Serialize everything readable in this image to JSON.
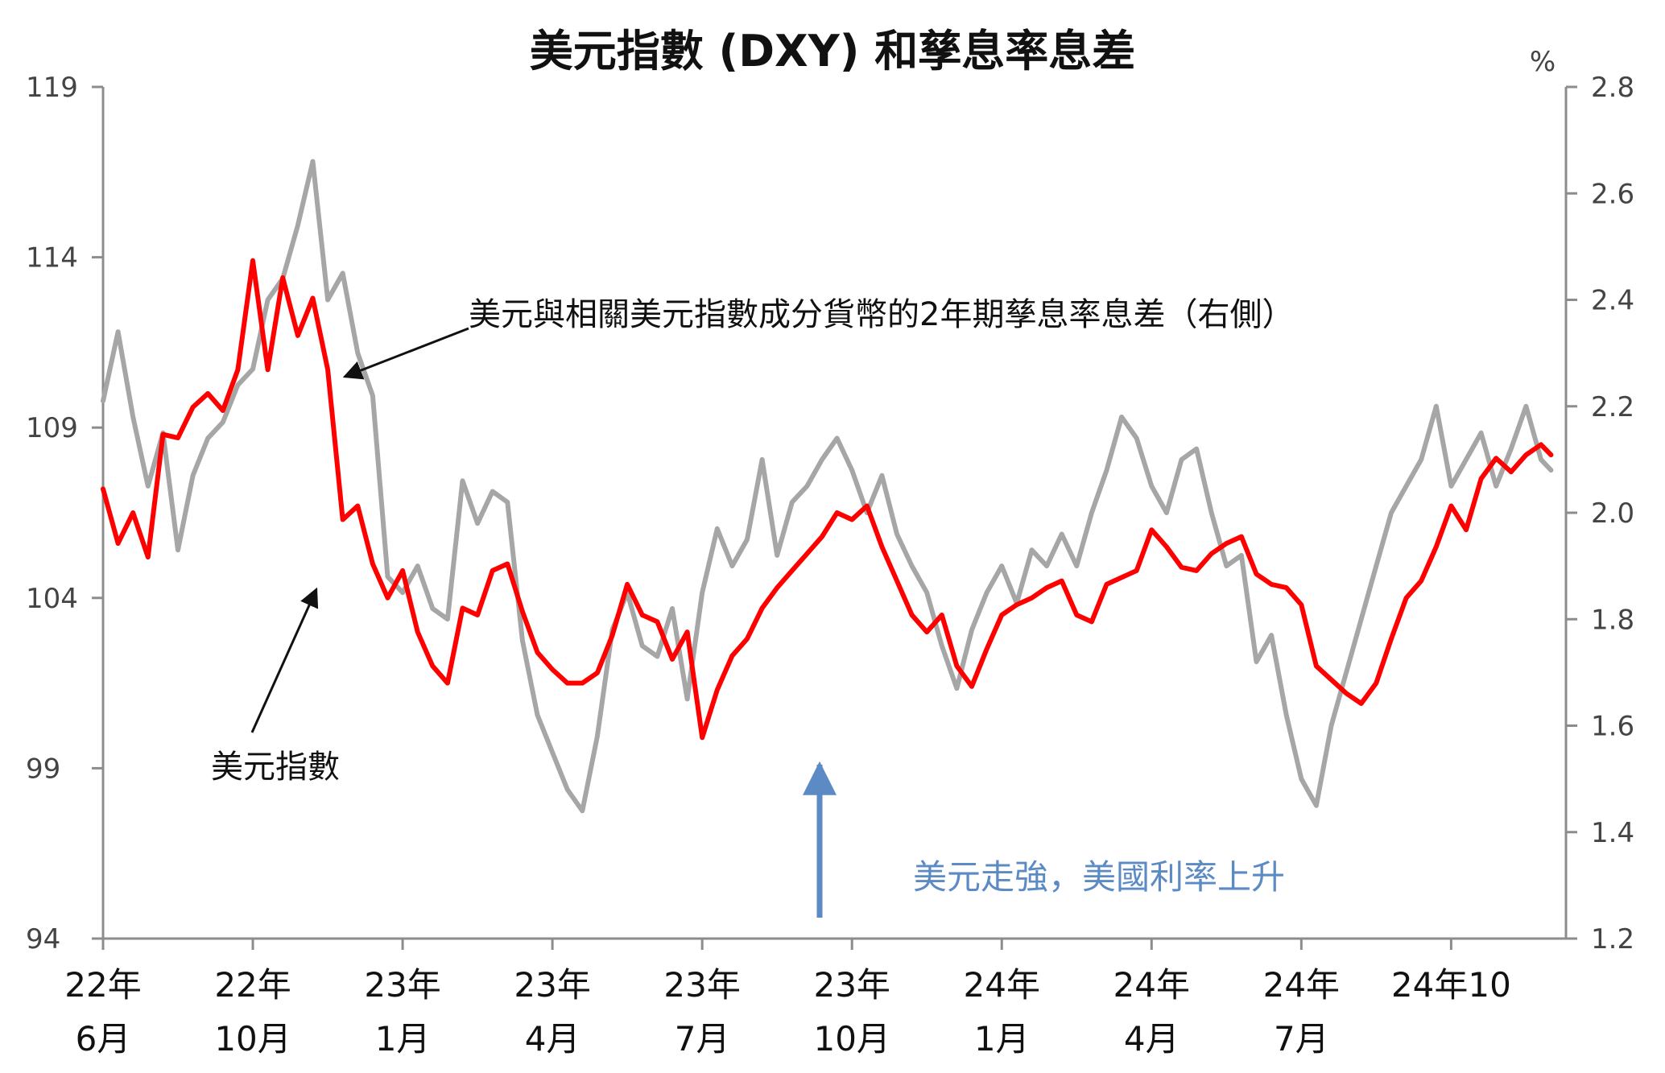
{
  "chart_data": {
    "type": "line",
    "title": "美元指數 (DXY) 和孳息率息差",
    "y2_unit": "%",
    "ylim": [
      94,
      119
    ],
    "yticks": [
      "119",
      "114",
      "109",
      "104",
      "99",
      "94"
    ],
    "y2lim": [
      1.2,
      2.8
    ],
    "y2ticks": [
      "2.8",
      "2.6",
      "2.4",
      "2.2",
      "2.0",
      "1.8",
      "1.6",
      "1.4",
      "1.2"
    ],
    "xlim": [
      0,
      29.3
    ],
    "xticks": [
      {
        "line1": "22年",
        "line2": "6月"
      },
      {
        "line1": "22年",
        "line2": "10月"
      },
      {
        "line1": "23年",
        "line2": "1月"
      },
      {
        "line1": "23年",
        "line2": "4月"
      },
      {
        "line1": "23年",
        "line2": "7月"
      },
      {
        "line1": "23年",
        "line2": "10月"
      },
      {
        "line1": "24年",
        "line2": "1月"
      },
      {
        "line1": "24年",
        "line2": "4月"
      },
      {
        "line1": "24年",
        "line2": "7月"
      },
      {
        "line1": "24年10",
        "line2": ""
      }
    ],
    "annotations": {
      "spread_label": "美元與相關美元指數成分貨幣的2年期孳息率息差（右側）",
      "dxy_label": "美元指數",
      "note_label": "美元走強，美國利率上升"
    },
    "colors": {
      "dxy": "#ff0000",
      "spread": "#a6a6a6",
      "axis": "#8c8c8c",
      "note_arrow": "#5b8ac4"
    },
    "series": [
      {
        "key": "dxy",
        "axis": "left",
        "x": [
          0,
          0.3,
          0.6,
          0.9,
          1.2,
          1.5,
          1.8,
          2.1,
          2.4,
          2.7,
          3.0,
          3.3,
          3.6,
          3.9,
          4.2,
          4.5,
          4.8,
          5.1,
          5.4,
          5.7,
          6.0,
          6.3,
          6.6,
          6.9,
          7.2,
          7.5,
          7.8,
          8.1,
          8.4,
          8.7,
          9.0,
          9.3,
          9.6,
          9.9,
          10.2,
          10.5,
          10.8,
          11.1,
          11.4,
          11.7,
          12.0,
          12.3,
          12.6,
          12.9,
          13.2,
          13.5,
          13.8,
          14.1,
          14.4,
          14.7,
          15.0,
          15.3,
          15.6,
          15.9,
          16.2,
          16.5,
          16.8,
          17.1,
          17.4,
          17.7,
          18.0,
          18.3,
          18.6,
          18.9,
          19.2,
          19.5,
          19.8,
          20.1,
          20.4,
          20.7,
          21.0,
          21.3,
          21.6,
          21.9,
          22.2,
          22.5,
          22.8,
          23.1,
          23.4,
          23.7,
          24.0,
          24.3,
          24.6,
          24.9,
          25.2,
          25.5,
          25.8,
          26.1,
          26.4,
          26.7,
          27.0,
          27.3,
          27.6,
          27.9,
          28.2,
          28.5,
          28.8,
          29.0
        ],
        "y": [
          107.2,
          105.6,
          106.5,
          105.2,
          108.8,
          108.7,
          109.6,
          110.0,
          109.5,
          110.7,
          113.9,
          110.7,
          113.4,
          111.7,
          112.8,
          110.7,
          106.3,
          106.7,
          105.0,
          104.0,
          104.8,
          103.0,
          102.0,
          101.5,
          103.7,
          103.5,
          104.8,
          105.0,
          103.6,
          102.4,
          101.9,
          101.5,
          101.5,
          101.8,
          102.9,
          104.4,
          103.5,
          103.3,
          102.2,
          103.0,
          99.9,
          101.3,
          102.3,
          102.8,
          103.7,
          104.3,
          104.8,
          105.3,
          105.8,
          106.5,
          106.3,
          106.7,
          105.5,
          104.5,
          103.5,
          103.0,
          103.5,
          102.0,
          101.4,
          102.5,
          103.5,
          103.8,
          104.0,
          104.3,
          104.5,
          103.5,
          103.3,
          104.4,
          104.6,
          104.8,
          106.0,
          105.5,
          104.9,
          104.8,
          105.3,
          105.6,
          105.8,
          104.7,
          104.4,
          104.3,
          103.8,
          102.0,
          101.6,
          101.2,
          100.9,
          101.5,
          102.8,
          104.0,
          104.5,
          105.5,
          106.7,
          106.0,
          107.5,
          108.1,
          107.7,
          108.2,
          108.5,
          108.2
        ]
      },
      {
        "key": "spread",
        "axis": "right",
        "x": [
          0,
          0.3,
          0.6,
          0.9,
          1.2,
          1.5,
          1.8,
          2.1,
          2.4,
          2.7,
          3.0,
          3.3,
          3.6,
          3.9,
          4.2,
          4.5,
          4.8,
          5.1,
          5.4,
          5.7,
          6.0,
          6.3,
          6.6,
          6.9,
          7.2,
          7.5,
          7.8,
          8.1,
          8.4,
          8.7,
          9.0,
          9.3,
          9.6,
          9.9,
          10.2,
          10.5,
          10.8,
          11.1,
          11.4,
          11.7,
          12.0,
          12.3,
          12.6,
          12.9,
          13.2,
          13.5,
          13.8,
          14.1,
          14.4,
          14.7,
          15.0,
          15.3,
          15.6,
          15.9,
          16.2,
          16.5,
          16.8,
          17.1,
          17.4,
          17.7,
          18.0,
          18.3,
          18.6,
          18.9,
          19.2,
          19.5,
          19.8,
          20.1,
          20.4,
          20.7,
          21.0,
          21.3,
          21.6,
          21.9,
          22.2,
          22.5,
          22.8,
          23.1,
          23.4,
          23.7,
          24.0,
          24.3,
          24.6,
          24.9,
          25.2,
          25.5,
          25.8,
          26.1,
          26.4,
          26.7,
          27.0,
          27.3,
          27.6,
          27.9,
          28.2,
          28.5,
          28.8,
          29.0
        ],
        "y": [
          2.21,
          2.34,
          2.18,
          2.05,
          2.15,
          1.93,
          2.07,
          2.14,
          2.17,
          2.24,
          2.27,
          2.4,
          2.44,
          2.54,
          2.66,
          2.4,
          2.45,
          2.3,
          2.22,
          1.88,
          1.85,
          1.9,
          1.82,
          1.8,
          2.06,
          1.98,
          2.04,
          2.02,
          1.76,
          1.62,
          1.55,
          1.48,
          1.44,
          1.58,
          1.78,
          1.85,
          1.75,
          1.73,
          1.82,
          1.65,
          1.85,
          1.97,
          1.9,
          1.95,
          2.1,
          1.92,
          2.02,
          2.05,
          2.1,
          2.14,
          2.08,
          2.0,
          2.07,
          1.96,
          1.9,
          1.85,
          1.75,
          1.67,
          1.78,
          1.85,
          1.9,
          1.83,
          1.93,
          1.9,
          1.96,
          1.9,
          2.0,
          2.08,
          2.18,
          2.14,
          2.05,
          2.0,
          2.1,
          2.12,
          2.0,
          1.9,
          1.92,
          1.72,
          1.77,
          1.62,
          1.5,
          1.45,
          1.6,
          1.7,
          1.8,
          1.9,
          2.0,
          2.05,
          2.1,
          2.2,
          2.05,
          2.1,
          2.15,
          2.05,
          2.12,
          2.2,
          2.1,
          2.08
        ]
      }
    ]
  }
}
